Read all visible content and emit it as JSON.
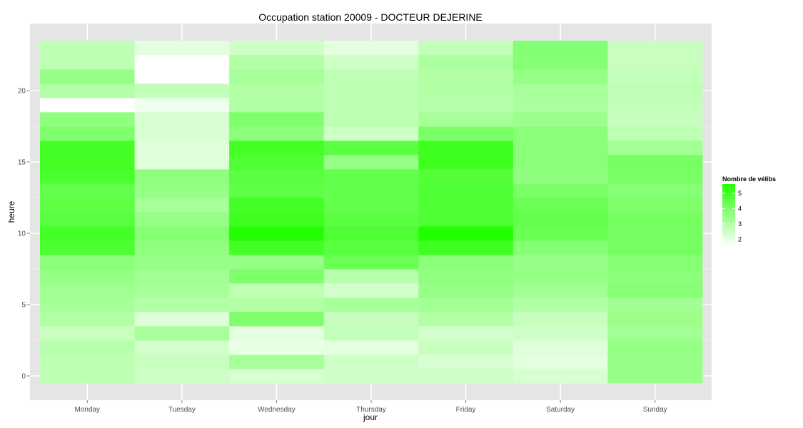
{
  "chart_data": {
    "type": "heatmap",
    "title": "Occupation station 20009 - DOCTEUR DEJERINE",
    "xlabel": "jour",
    "ylabel": "heure",
    "x_categories": [
      "Monday",
      "Tuesday",
      "Wednesday",
      "Thursday",
      "Friday",
      "Saturday",
      "Sunday"
    ],
    "y_hours": [
      0,
      1,
      2,
      3,
      4,
      5,
      6,
      7,
      8,
      9,
      10,
      11,
      12,
      13,
      14,
      15,
      16,
      17,
      18,
      19,
      20,
      21,
      22,
      23
    ],
    "y_ticks": [
      0,
      5,
      10,
      15,
      20
    ],
    "ylim": [
      -0.5,
      23.5
    ],
    "grid": true,
    "color_scale": {
      "low": "#ffffff",
      "high": "#22ff00",
      "min": 1.6,
      "max": 5.6
    },
    "legend": {
      "title": "Nombre de vélibs",
      "ticks": [
        2,
        3,
        4,
        5
      ],
      "position": "right"
    },
    "values": [
      [
        2.8,
        2.8,
        2.9,
        2.6,
        3.0,
        3.2,
        3.3,
        3.5,
        3.7,
        4.8,
        5.0,
        4.6,
        4.5,
        4.4,
        4.9,
        5.0,
        5.0,
        3.9,
        3.6,
        1.6,
        3.0,
        3.5,
        2.8,
        2.8
      ],
      [
        2.5,
        2.6,
        2.4,
        3.2,
        2.2,
        3.0,
        3.2,
        3.3,
        3.5,
        3.6,
        3.8,
        3.5,
        3.2,
        3.5,
        3.6,
        2.2,
        2.2,
        2.3,
        2.3,
        1.9,
        2.7,
        1.6,
        1.6,
        2.1
      ],
      [
        2.3,
        3.2,
        2.0,
        2.1,
        3.9,
        3.0,
        2.8,
        3.9,
        3.5,
        5.0,
        5.6,
        5.1,
        5.0,
        4.5,
        4.6,
        4.8,
        5.0,
        3.7,
        3.9,
        3.0,
        3.0,
        3.2,
        3.0,
        2.5
      ],
      [
        2.5,
        2.5,
        2.1,
        2.7,
        2.6,
        3.2,
        2.4,
        2.9,
        4.3,
        4.6,
        4.8,
        4.6,
        4.4,
        4.4,
        4.4,
        3.5,
        4.6,
        2.5,
        2.8,
        2.8,
        2.8,
        2.8,
        2.5,
        2.1
      ],
      [
        2.5,
        2.3,
        2.6,
        2.4,
        3.0,
        3.3,
        3.5,
        3.6,
        3.7,
        5.1,
        5.6,
        4.8,
        4.8,
        4.8,
        4.7,
        5.1,
        5.1,
        4.0,
        3.2,
        2.9,
        3.0,
        3.0,
        3.1,
        2.7
      ],
      [
        2.3,
        2.1,
        2.2,
        2.5,
        2.6,
        3.0,
        3.3,
        3.5,
        3.5,
        3.8,
        4.3,
        4.4,
        4.3,
        4.0,
        3.6,
        3.7,
        3.7,
        3.7,
        3.4,
        3.1,
        3.2,
        3.5,
        3.8,
        3.8
      ],
      [
        3.5,
        3.5,
        3.5,
        3.3,
        3.4,
        3.3,
        3.8,
        3.7,
        3.8,
        4.1,
        4.1,
        4.1,
        3.9,
        3.8,
        4.0,
        4.1,
        3.3,
        2.8,
        2.6,
        2.7,
        2.8,
        2.7,
        2.6,
        2.6
      ]
    ]
  }
}
